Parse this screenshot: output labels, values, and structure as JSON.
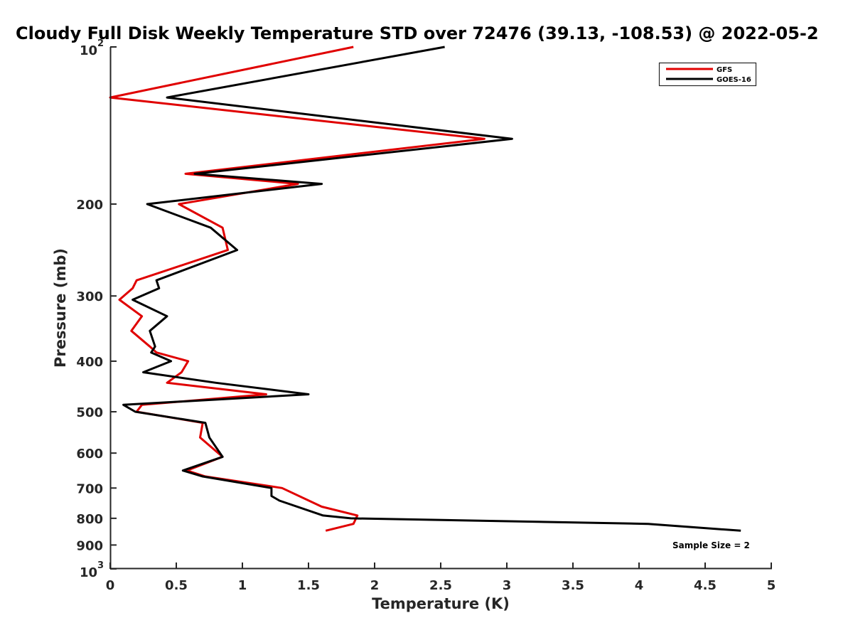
{
  "chart_data": {
    "type": "line",
    "title": "Cloudy Full Disk Weekly Temperature STD over 72476 (39.13, -108.53) @ 2022-05-2",
    "xlabel": "Temperature (K)",
    "ylabel": "Pressure (mb)",
    "xlim": [
      0,
      5
    ],
    "ylim": [
      100,
      1000
    ],
    "y_scale": "log",
    "y_reversed": true,
    "xticks": [
      0,
      0.5,
      1,
      1.5,
      2,
      2.5,
      3,
      3.5,
      4,
      4.5,
      5
    ],
    "xtick_labels": [
      "0",
      "0.5",
      "1",
      "1.5",
      "2",
      "2.5",
      "3",
      "3.5",
      "4",
      "4.5",
      "5"
    ],
    "yticks": [
      100,
      200,
      300,
      400,
      500,
      600,
      700,
      800,
      900,
      1000
    ],
    "ytick_labels": [
      {
        "base": "10",
        "exp": "2"
      },
      {
        "base": "200",
        "exp": ""
      },
      {
        "base": "300",
        "exp": ""
      },
      {
        "base": "400",
        "exp": ""
      },
      {
        "base": "500",
        "exp": ""
      },
      {
        "base": "600",
        "exp": ""
      },
      {
        "base": "700",
        "exp": ""
      },
      {
        "base": "800",
        "exp": ""
      },
      {
        "base": "900",
        "exp": ""
      },
      {
        "base": "10",
        "exp": "3"
      }
    ],
    "grid": false,
    "legend_position": "top-right",
    "annotation": "Sample Size = 2",
    "series": [
      {
        "name": "GFS",
        "color": "#e00000",
        "points": [
          [
            1.84,
            100
          ],
          [
            0.0,
            125
          ],
          [
            2.83,
            150
          ],
          [
            0.57,
            175
          ],
          [
            1.42,
            183
          ],
          [
            0.52,
            200
          ],
          [
            0.85,
            222
          ],
          [
            0.89,
            245
          ],
          [
            0.2,
            280
          ],
          [
            0.17,
            290
          ],
          [
            0.07,
            305
          ],
          [
            0.24,
            328
          ],
          [
            0.16,
            350
          ],
          [
            0.3,
            375
          ],
          [
            0.35,
            385
          ],
          [
            0.59,
            400
          ],
          [
            0.54,
            420
          ],
          [
            0.43,
            440
          ],
          [
            1.18,
            463
          ],
          [
            0.24,
            485
          ],
          [
            0.2,
            500
          ],
          [
            0.7,
            525
          ],
          [
            0.68,
            560
          ],
          [
            0.85,
            610
          ],
          [
            0.58,
            648
          ],
          [
            0.72,
            665
          ],
          [
            1.3,
            700
          ],
          [
            1.6,
            760
          ],
          [
            1.87,
            790
          ],
          [
            1.84,
            820
          ],
          [
            1.63,
            845
          ]
        ]
      },
      {
        "name": "GOES-16",
        "color": "#000000",
        "points": [
          [
            2.53,
            100
          ],
          [
            0.43,
            125
          ],
          [
            3.04,
            150
          ],
          [
            0.64,
            175
          ],
          [
            1.6,
            183
          ],
          [
            0.28,
            200
          ],
          [
            0.76,
            222
          ],
          [
            0.96,
            245
          ],
          [
            0.35,
            280
          ],
          [
            0.37,
            290
          ],
          [
            0.17,
            305
          ],
          [
            0.43,
            328
          ],
          [
            0.3,
            350
          ],
          [
            0.34,
            375
          ],
          [
            0.31,
            385
          ],
          [
            0.46,
            400
          ],
          [
            0.25,
            420
          ],
          [
            0.8,
            440
          ],
          [
            1.5,
            463
          ],
          [
            0.1,
            485
          ],
          [
            0.19,
            500
          ],
          [
            0.72,
            525
          ],
          [
            0.75,
            560
          ],
          [
            0.85,
            610
          ],
          [
            0.55,
            648
          ],
          [
            0.7,
            665
          ],
          [
            1.22,
            700
          ],
          [
            1.22,
            725
          ],
          [
            1.28,
            740
          ],
          [
            1.61,
            790
          ],
          [
            1.82,
            800
          ],
          [
            4.07,
            820
          ],
          [
            4.77,
            845
          ]
        ]
      }
    ]
  }
}
